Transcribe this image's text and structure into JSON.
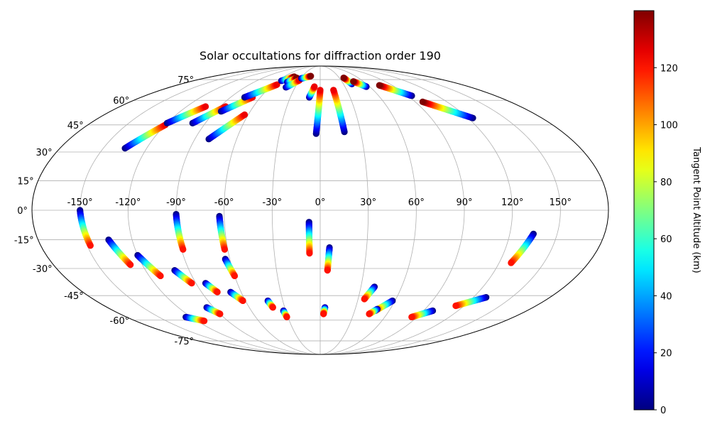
{
  "chart_data": {
    "type": "scatter",
    "projection": "mollweide",
    "title": "Solar occultations for diffraction order 190",
    "grid": true,
    "lon_ticks": [
      -150,
      -120,
      -90,
      -60,
      -30,
      0,
      30,
      60,
      90,
      120,
      150
    ],
    "lat_ticks": [
      -75,
      -60,
      -45,
      -30,
      -15,
      0,
      15,
      30,
      45,
      60,
      75
    ],
    "lon_tick_labels": [
      "-150°",
      "-120°",
      "-90°",
      "-60°",
      "-30°",
      "0°",
      "30°",
      "60°",
      "90°",
      "120°",
      "150°"
    ],
    "lat_tick_labels": [
      "-75°",
      "-60°",
      "-45°",
      "-30°",
      "-15°",
      "0°",
      "15°",
      "30°",
      "45°",
      "60°",
      "75°"
    ],
    "colorbar": {
      "label": "Tangent Point Altitude (km)",
      "colormap": "jet",
      "range": [
        0,
        140
      ],
      "ticks": [
        0,
        20,
        40,
        60,
        80,
        100,
        120
      ],
      "tick_labels": [
        "0",
        "20",
        "40",
        "60",
        "80",
        "100",
        "120"
      ],
      "position": "right"
    },
    "value_field": "tangent altitude (km), increasing from the blue end to the red end of each track",
    "tracks": [
      {
        "lon_start": -135,
        "lat_start": 32,
        "lon_end": -120,
        "lat_end": 45,
        "alt_start": 0,
        "alt_end": 125
      },
      {
        "lon_start": -120,
        "lat_start": 46,
        "lon_end": -103,
        "lat_end": 56,
        "alt_start": 0,
        "alt_end": 125
      },
      {
        "lon_start": -100,
        "lat_start": 46,
        "lon_end": -85,
        "lat_end": 56,
        "alt_start": 0,
        "alt_end": 125
      },
      {
        "lon_start": -85,
        "lat_start": 53,
        "lon_end": -68,
        "lat_end": 62,
        "alt_start": 0,
        "alt_end": 125
      },
      {
        "lon_start": -80,
        "lat_start": 37,
        "lon_end": -63,
        "lat_end": 51,
        "alt_start": 0,
        "alt_end": 125
      },
      {
        "lon_start": -76,
        "lat_start": 62,
        "lon_end": -55,
        "lat_end": 71,
        "alt_start": 0,
        "alt_end": 125
      },
      {
        "lon_start": -55,
        "lat_start": 74,
        "lon_end": -43,
        "lat_end": 77.5,
        "alt_start": 0,
        "alt_end": 140
      },
      {
        "lon_start": -45,
        "lat_start": 73,
        "lon_end": -37,
        "lat_end": 76.5,
        "alt_start": 0,
        "alt_end": 140
      },
      {
        "lon_start": -41,
        "lat_start": 69,
        "lon_end": -30,
        "lat_end": 74.5,
        "alt_start": 0,
        "alt_end": 125
      },
      {
        "lon_start": -29,
        "lat_start": 76,
        "lon_end": -16,
        "lat_end": 78,
        "alt_start": 0,
        "alt_end": 140
      },
      {
        "lon_start": -11,
        "lat_start": 62,
        "lon_end": -7,
        "lat_end": 69.5,
        "alt_start": 0,
        "alt_end": 125
      },
      {
        "lon_start": -3,
        "lat_start": 40,
        "lon_end": 0,
        "lat_end": 67,
        "alt_start": 0,
        "alt_end": 125
      },
      {
        "lon_start": 18,
        "lat_start": 41,
        "lon_end": 15,
        "lat_end": 67,
        "alt_start": 0,
        "alt_end": 125
      },
      {
        "lon_start": 41,
        "lat_start": 71.5,
        "lon_end": 37,
        "lat_end": 76.5,
        "alt_start": 0,
        "alt_end": 140
      },
      {
        "lon_start": 56,
        "lat_start": 69.5,
        "lon_end": 46,
        "lat_end": 73.5,
        "alt_start": 0,
        "alt_end": 140
      },
      {
        "lon_start": 94,
        "lat_start": 63,
        "lon_end": 74,
        "lat_end": 70.5,
        "alt_start": 0,
        "alt_end": 140
      },
      {
        "lon_start": 124,
        "lat_start": 49,
        "lon_end": 97,
        "lat_end": 59,
        "alt_start": 0,
        "alt_end": 140
      },
      {
        "lon_start": -150,
        "lat_start": 0,
        "lon_end": -148,
        "lat_end": -18,
        "alt_start": 0,
        "alt_end": 120
      },
      {
        "lon_start": -135,
        "lat_start": -15,
        "lon_end": -128,
        "lat_end": -28,
        "alt_start": 0,
        "alt_end": 120
      },
      {
        "lon_start": -120,
        "lat_start": -23,
        "lon_end": -112,
        "lat_end": -34,
        "alt_start": 0,
        "alt_end": 120
      },
      {
        "lon_start": -100,
        "lat_start": -31,
        "lon_end": -93,
        "lat_end": -38,
        "alt_start": 0,
        "alt_end": 120
      },
      {
        "lon_start": -90,
        "lat_start": -2,
        "lon_end": -89,
        "lat_end": -20,
        "alt_start": 0,
        "alt_end": 120
      },
      {
        "lon_start": -83,
        "lat_start": -38,
        "lon_end": -78,
        "lat_end": -43,
        "alt_start": 0,
        "alt_end": 120
      },
      {
        "lon_start": -63,
        "lat_start": -3,
        "lon_end": -62,
        "lat_end": -20,
        "alt_start": 0,
        "alt_end": 120
      },
      {
        "lon_start": -63,
        "lat_start": -25,
        "lon_end": -60,
        "lat_end": -34,
        "alt_start": 0,
        "alt_end": 120
      },
      {
        "lon_start": -68,
        "lat_start": -43,
        "lon_end": -62,
        "lat_end": -48,
        "alt_start": 0,
        "alt_end": 120
      },
      {
        "lon_start": -96,
        "lat_start": -52,
        "lon_end": -90,
        "lat_end": -56,
        "alt_start": 0,
        "alt_end": 120
      },
      {
        "lon_start": -125,
        "lat_start": -58,
        "lon_end": -113,
        "lat_end": -60.5,
        "alt_start": 0,
        "alt_end": 120
      },
      {
        "lon_start": -42,
        "lat_start": -48,
        "lon_end": -40,
        "lat_end": -52,
        "alt_start": 0,
        "alt_end": 120
      },
      {
        "lon_start": -32,
        "lat_start": -54,
        "lon_end": -31,
        "lat_end": -58,
        "alt_start": 0,
        "alt_end": 120
      },
      {
        "lon_start": -7,
        "lat_start": -6,
        "lon_end": -7,
        "lat_end": -22,
        "alt_start": 0,
        "alt_end": 120
      },
      {
        "lon_start": 6,
        "lat_start": -19,
        "lon_end": 5,
        "lat_end": -31,
        "alt_start": 0,
        "alt_end": 120
      },
      {
        "lon_start": 4,
        "lat_start": -52,
        "lon_end": 3,
        "lat_end": -56,
        "alt_start": 0,
        "alt_end": 120
      },
      {
        "lon_start": 40,
        "lat_start": -40,
        "lon_end": 35,
        "lat_end": -47,
        "alt_start": 0,
        "alt_end": 120
      },
      {
        "lon_start": 58,
        "lat_start": -48,
        "lon_end": 48,
        "lat_end": -54,
        "alt_start": 0,
        "alt_end": 120
      },
      {
        "lon_start": 49,
        "lat_start": -53,
        "lon_end": 44,
        "lat_end": -56,
        "alt_start": 0,
        "alt_end": 120
      },
      {
        "lon_start": 98,
        "lat_start": -54,
        "lon_end": 85,
        "lat_end": -58,
        "alt_start": 0,
        "alt_end": 120
      },
      {
        "lon_start": 130,
        "lat_start": -46,
        "lon_end": 113,
        "lat_end": -51,
        "alt_start": 0,
        "alt_end": 120
      },
      {
        "lon_start": 135,
        "lat_start": -12,
        "lon_end": 128,
        "lat_end": -27,
        "alt_start": 0,
        "alt_end": 120
      }
    ]
  }
}
